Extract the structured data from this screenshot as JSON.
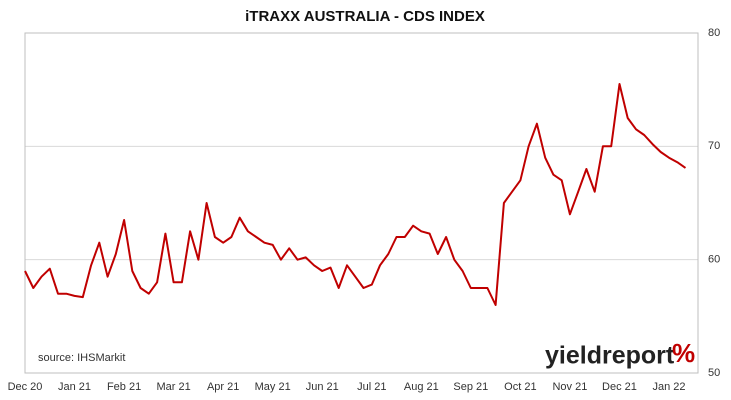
{
  "chart_data": {
    "type": "line",
    "title": "iTRAXX AUSTRALIA - CDS INDEX",
    "source": "source: IHSMarkit",
    "logo": "yieldreport",
    "logo_mark": "%",
    "categories": [
      "Dec 20",
      null,
      null,
      null,
      null,
      null,
      "Jan 21",
      null,
      null,
      null,
      null,
      null,
      "Feb 21",
      null,
      null,
      null,
      null,
      null,
      "Mar 21",
      null,
      null,
      null,
      null,
      null,
      "Apr 21",
      null,
      null,
      null,
      null,
      null,
      "May 21",
      null,
      null,
      null,
      null,
      null,
      "Jun 21",
      null,
      null,
      null,
      null,
      null,
      "Jul 21",
      null,
      null,
      null,
      null,
      null,
      "Aug 21",
      null,
      null,
      null,
      null,
      null,
      "Sep 21",
      null,
      null,
      null,
      null,
      null,
      "Oct 21",
      null,
      null,
      null,
      null,
      null,
      "Nov 21",
      null,
      null,
      null,
      null,
      null,
      "Dec 21",
      null,
      null,
      null,
      null,
      null,
      "Jan 22",
      null,
      null
    ],
    "series": [
      {
        "name": "iTRAXX Australia",
        "color": "#c00000",
        "values": [
          59,
          57.5,
          58.5,
          59.2,
          57,
          57,
          56.8,
          56.7,
          59.5,
          61.5,
          58.5,
          60.5,
          63.5,
          59,
          57.5,
          57,
          58,
          62.3,
          58,
          58,
          62.5,
          60,
          65,
          62,
          61.5,
          62,
          63.7,
          62.5,
          62,
          61.5,
          61.3,
          60,
          61,
          60,
          60.2,
          59.5,
          59,
          59.3,
          57.5,
          59.5,
          58.5,
          57.5,
          57.8,
          59.5,
          60.5,
          62,
          62,
          63,
          62.5,
          62.3,
          60.5,
          62,
          60,
          59,
          57.5,
          57.5,
          57.5,
          56,
          65,
          66,
          67,
          70,
          72,
          69,
          67.5,
          67,
          64,
          66,
          68,
          66,
          70,
          70,
          75.5,
          72.5,
          71.5,
          71,
          70.2,
          69.5,
          69,
          68.6,
          68.1
        ]
      }
    ],
    "ylim": [
      50,
      80
    ],
    "yticks": [
      50,
      60,
      70,
      80
    ],
    "grid": true,
    "y_axis_side": "right"
  }
}
